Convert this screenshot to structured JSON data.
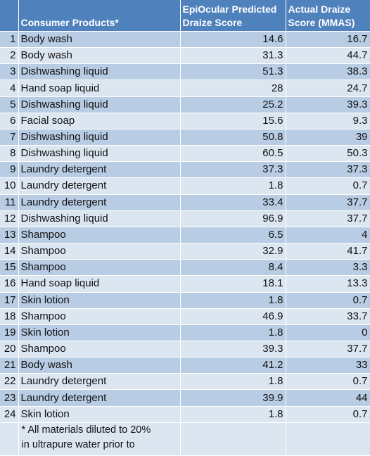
{
  "table": {
    "headers": {
      "number": "",
      "product": "Consumer Products*",
      "predicted_line1": "EpiOcular Predicted",
      "predicted_line2": "Draize Score",
      "actual_line1": "Actual Draize",
      "actual_line2": "Score (MMAS)"
    },
    "rows": [
      {
        "n": "1",
        "product": "Body wash",
        "predicted": "14.6",
        "actual": "16.7"
      },
      {
        "n": "2",
        "product": "Body wash",
        "predicted": "31.3",
        "actual": "44.7"
      },
      {
        "n": "3",
        "product": "Dishwashing liquid",
        "predicted": "51.3",
        "actual": "38.3"
      },
      {
        "n": "4",
        "product": "Hand soap liquid",
        "predicted": "28",
        "actual": "24.7"
      },
      {
        "n": "5",
        "product": "Dishwashing liquid",
        "predicted": "25.2",
        "actual": "39.3"
      },
      {
        "n": "6",
        "product": "Facial soap",
        "predicted": "15.6",
        "actual": "9.3"
      },
      {
        "n": "7",
        "product": "Dishwashing liquid",
        "predicted": "50.8",
        "actual": "39"
      },
      {
        "n": "8",
        "product": "Dishwashing liquid",
        "predicted": "60.5",
        "actual": "50.3"
      },
      {
        "n": "9",
        "product": "Laundry detergent",
        "predicted": "37.3",
        "actual": "37.3"
      },
      {
        "n": "10",
        "product": "Laundry detergent",
        "predicted": "1.8",
        "actual": "0.7"
      },
      {
        "n": "11",
        "product": "Laundry detergent",
        "predicted": "33.4",
        "actual": "37.7"
      },
      {
        "n": "12",
        "product": "Dishwashing liquid",
        "predicted": "96.9",
        "actual": "37.7"
      },
      {
        "n": "13",
        "product": "Shampoo",
        "predicted": "6.5",
        "actual": "4"
      },
      {
        "n": "14",
        "product": "Shampoo",
        "predicted": "32.9",
        "actual": "41.7"
      },
      {
        "n": "15",
        "product": "Shampoo",
        "predicted": "8.4",
        "actual": "3.3"
      },
      {
        "n": "16",
        "product": "Hand soap liquid",
        "predicted": "18.1",
        "actual": "13.3"
      },
      {
        "n": "17",
        "product": "Skin lotion",
        "predicted": "1.8",
        "actual": "0.7"
      },
      {
        "n": "18",
        "product": "Shampoo",
        "predicted": "46.9",
        "actual": "33.7"
      },
      {
        "n": "19",
        "product": "Skin lotion",
        "predicted": "1.8",
        "actual": "0"
      },
      {
        "n": "20",
        "product": "Shampoo",
        "predicted": "39.3",
        "actual": "37.7"
      },
      {
        "n": "21",
        "product": "Body wash",
        "predicted": "41.2",
        "actual": "33"
      },
      {
        "n": "22",
        "product": "Laundry detergent",
        "predicted": "1.8",
        "actual": "0.7"
      },
      {
        "n": "23",
        "product": "Laundry detergent",
        "predicted": "39.9",
        "actual": "44"
      },
      {
        "n": "24",
        "product": "Skin lotion",
        "predicted": "1.8",
        "actual": "0.7"
      }
    ],
    "footnote_line1": "* All materials diluted to 20%",
    "footnote_line2": "in ultrapure water prior to"
  },
  "colors": {
    "header_bg": "#4f81bd",
    "row_dark": "#b8cce4",
    "row_light": "#dce6f1"
  }
}
